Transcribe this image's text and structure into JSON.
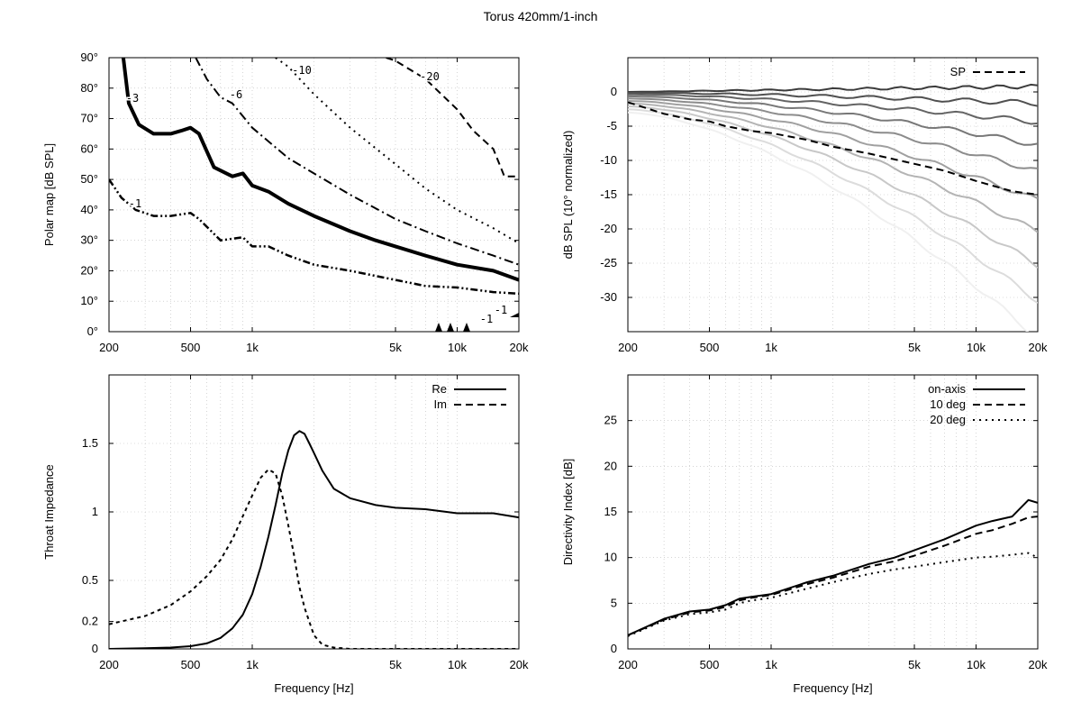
{
  "title": "Torus 420mm/1-inch",
  "x_tick_labels": [
    "200",
    "500",
    "1k",
    "5k",
    "10k",
    "20k"
  ],
  "x_tick_values": [
    200,
    500,
    1000,
    5000,
    10000,
    20000
  ],
  "chart_data": [
    {
      "type": "line",
      "panel": "polar-map",
      "ylabel": "Polar map [dB SPL]",
      "xlabel": "",
      "xscale": "log",
      "xlim": [
        200,
        20000
      ],
      "ylim": [
        0,
        90
      ],
      "yticks": [
        0,
        10,
        20,
        30,
        40,
        50,
        60,
        70,
        80,
        90
      ],
      "ytick_labels": [
        "0°",
        "10°",
        "20°",
        "30°",
        "40°",
        "50°",
        "60°",
        "70°",
        "80°",
        "90°"
      ],
      "grid": true,
      "series": [
        {
          "name": "-1",
          "style": "dashdotdot",
          "x": [
            200,
            230,
            270,
            330,
            400,
            500,
            550,
            700,
            900,
            1000,
            1200,
            1500,
            2000,
            3000,
            5000,
            7000,
            10000,
            15000,
            20000
          ],
          "y": [
            50,
            44,
            40,
            38,
            38,
            39,
            37,
            30,
            31,
            28,
            28,
            25,
            22,
            20,
            17,
            15,
            14.5,
            13,
            12.5
          ]
        },
        {
          "name": "-3",
          "style": "thick",
          "x": [
            235,
            250,
            280,
            330,
            400,
            450,
            500,
            550,
            650,
            800,
            900,
            1000,
            1200,
            1500,
            2000,
            3000,
            4000,
            5000,
            7000,
            10000,
            15000,
            20000
          ],
          "y": [
            90,
            75,
            68,
            65,
            65,
            66,
            67,
            65,
            54,
            51,
            52,
            48,
            46,
            42,
            38,
            33,
            30,
            28,
            25,
            22,
            20,
            17
          ]
        },
        {
          "name": "-6",
          "style": "dashdot",
          "x": [
            530,
            600,
            700,
            800,
            1000,
            1500,
            2000,
            3000,
            5000,
            7000,
            10000,
            15000,
            20000
          ],
          "y": [
            90,
            83,
            77,
            75,
            67,
            57,
            52,
            45,
            37,
            33,
            29,
            25,
            22
          ]
        },
        {
          "name": "-10",
          "style": "dotted",
          "x": [
            1300,
            1500,
            2000,
            3000,
            5000,
            7000,
            10000,
            15000,
            20000
          ],
          "y": [
            90,
            87,
            78,
            67,
            55,
            47,
            40,
            34,
            29
          ]
        },
        {
          "name": "-20",
          "style": "dashed",
          "x": [
            4500,
            5000,
            7000,
            10000,
            12000,
            15000,
            17000,
            20000
          ],
          "y": [
            90,
            89,
            83,
            73,
            66,
            60,
            51,
            51
          ]
        }
      ],
      "annotations": [
        "-1",
        "-3",
        "-6",
        "-10",
        "-20",
        "-1",
        "-1"
      ]
    },
    {
      "type": "line",
      "panel": "normalized-spl",
      "ylabel": "dB SPL (10° normalized)",
      "xlabel": "",
      "xscale": "log",
      "xlim": [
        200,
        20000
      ],
      "ylim": [
        -35,
        5
      ],
      "yticks": [
        0,
        -5,
        -10,
        -15,
        -20,
        -25,
        -30
      ],
      "ytick_labels": [
        "0",
        "-5",
        "-10",
        "-15",
        "-20",
        "-25",
        "-30"
      ],
      "grid": true,
      "legend": "top-right",
      "series": [
        {
          "name": "SP",
          "style": "dashed",
          "x": [
            200,
            300,
            400,
            500,
            600,
            800,
            1000,
            1500,
            2000,
            3000,
            5000,
            7000,
            10000,
            15000,
            20000
          ],
          "y": [
            -1.5,
            -3.2,
            -4,
            -4.3,
            -5,
            -5.7,
            -6,
            -7,
            -8,
            -9,
            -10.5,
            -11.5,
            -13,
            -14.5,
            -15
          ]
        },
        {
          "style": "family",
          "angles_deg": [
            0,
            10,
            20,
            30,
            40,
            50,
            60,
            70,
            80,
            90
          ]
        }
      ]
    },
    {
      "type": "line",
      "panel": "throat-impedance",
      "ylabel": "Throat Impedance",
      "xlabel": "Frequency [Hz]",
      "xscale": "log",
      "xlim": [
        200,
        20000
      ],
      "ylim": [
        0,
        2
      ],
      "yticks": [
        0,
        0.2,
        0.5,
        1,
        1.5
      ],
      "ytick_labels": [
        "0",
        "0.2",
        "0.5",
        "1",
        "1.5"
      ],
      "grid": true,
      "legend": "top-right",
      "series": [
        {
          "name": "Re",
          "style": "solid",
          "x": [
            200,
            300,
            400,
            500,
            600,
            700,
            800,
            900,
            1000,
            1100,
            1200,
            1300,
            1400,
            1500,
            1600,
            1700,
            1800,
            1900,
            2000,
            2200,
            2500,
            3000,
            4000,
            5000,
            7000,
            10000,
            15000,
            20000
          ],
          "y": [
            0,
            0.005,
            0.01,
            0.02,
            0.04,
            0.08,
            0.15,
            0.25,
            0.4,
            0.6,
            0.82,
            1.05,
            1.28,
            1.45,
            1.56,
            1.59,
            1.57,
            1.5,
            1.43,
            1.3,
            1.17,
            1.1,
            1.05,
            1.03,
            1.02,
            0.99,
            0.99,
            0.96
          ]
        },
        {
          "name": "Im",
          "style": "dashed",
          "x": [
            200,
            300,
            400,
            500,
            600,
            700,
            800,
            900,
            1000,
            1100,
            1200,
            1300,
            1400,
            1500,
            1600,
            1700,
            1800,
            2000,
            2200,
            2500,
            3000,
            20000
          ],
          "y": [
            0.18,
            0.24,
            0.32,
            0.42,
            0.53,
            0.65,
            0.8,
            0.97,
            1.12,
            1.25,
            1.31,
            1.28,
            1.12,
            0.9,
            0.68,
            0.45,
            0.3,
            0.1,
            0.03,
            0.01,
            0,
            0
          ]
        }
      ]
    },
    {
      "type": "line",
      "panel": "directivity-index",
      "ylabel": "Directivity Index [dB]",
      "xlabel": "Frequency [Hz]",
      "xscale": "log",
      "xlim": [
        200,
        20000
      ],
      "ylim": [
        0,
        30
      ],
      "yticks": [
        0,
        5,
        10,
        15,
        20,
        25
      ],
      "ytick_labels": [
        "0",
        "5",
        "10",
        "15",
        "20",
        "25"
      ],
      "grid": true,
      "legend": "top-right",
      "series": [
        {
          "name": "on-axis",
          "style": "solid",
          "x": [
            200,
            300,
            400,
            500,
            600,
            700,
            800,
            1000,
            1500,
            2000,
            3000,
            4000,
            5000,
            7000,
            10000,
            12000,
            15000,
            18000,
            20000
          ],
          "y": [
            1.5,
            3.3,
            4.1,
            4.3,
            4.8,
            5.5,
            5.7,
            6,
            7.3,
            8,
            9.3,
            10,
            10.8,
            12,
            13.5,
            14,
            14.5,
            16.3,
            16
          ]
        },
        {
          "name": "10 deg",
          "style": "dashed",
          "x": [
            200,
            300,
            400,
            500,
            600,
            700,
            800,
            1000,
            1500,
            2000,
            3000,
            4000,
            5000,
            7000,
            10000,
            12000,
            15000,
            18000,
            20000
          ],
          "y": [
            1.5,
            3.2,
            4,
            4.2,
            4.6,
            5.3,
            5.6,
            5.9,
            7.1,
            7.8,
            9,
            9.6,
            10.2,
            11.3,
            12.6,
            13,
            13.7,
            14.4,
            14.5
          ]
        },
        {
          "name": "20 deg",
          "style": "dotted",
          "x": [
            200,
            300,
            400,
            500,
            600,
            700,
            800,
            1000,
            1500,
            2000,
            3000,
            4000,
            5000,
            7000,
            10000,
            12000,
            15000,
            18000,
            20000
          ],
          "y": [
            1.4,
            3.1,
            3.8,
            4,
            4.3,
            5,
            5.3,
            5.6,
            6.6,
            7.3,
            8.2,
            8.7,
            9,
            9.5,
            10,
            10.1,
            10.3,
            10.5,
            10
          ]
        }
      ]
    }
  ]
}
